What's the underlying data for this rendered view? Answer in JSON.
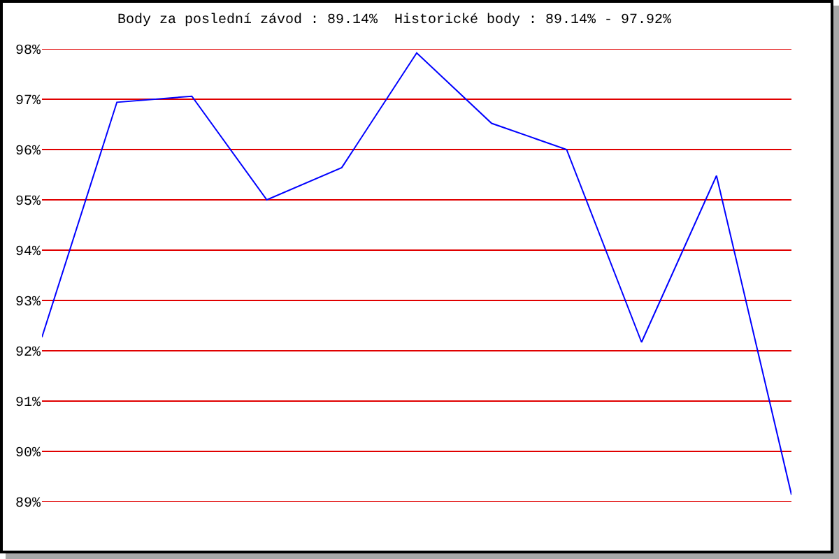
{
  "chart_data": {
    "type": "line",
    "title": "Body za poslední závod : 89.14%  Historické body : 89.14% - 97.92%",
    "categories": [
      null,
      null,
      null,
      null,
      null,
      null,
      null,
      null,
      null,
      null,
      null
    ],
    "values": [
      92.27,
      96.94,
      97.06,
      95.0,
      95.64,
      97.92,
      96.52,
      96.0,
      92.17,
      95.48,
      89.14
    ],
    "color": "#0000ff",
    "marker": "none",
    "line_style": "solid",
    "ylim": [
      89,
      98
    ],
    "yticks": [
      {
        "value": 89,
        "label": "89%"
      },
      {
        "value": 90,
        "label": "90%"
      },
      {
        "value": 91,
        "label": "91%"
      },
      {
        "value": 92,
        "label": "92%"
      },
      {
        "value": 93,
        "label": "93%"
      },
      {
        "value": 94,
        "label": "94%"
      },
      {
        "value": 95,
        "label": "95%"
      },
      {
        "value": 96,
        "label": "96%"
      },
      {
        "value": 97,
        "label": "97%"
      },
      {
        "value": 98,
        "label": "98%"
      }
    ],
    "grid": "y",
    "tick_labels": "y"
  }
}
